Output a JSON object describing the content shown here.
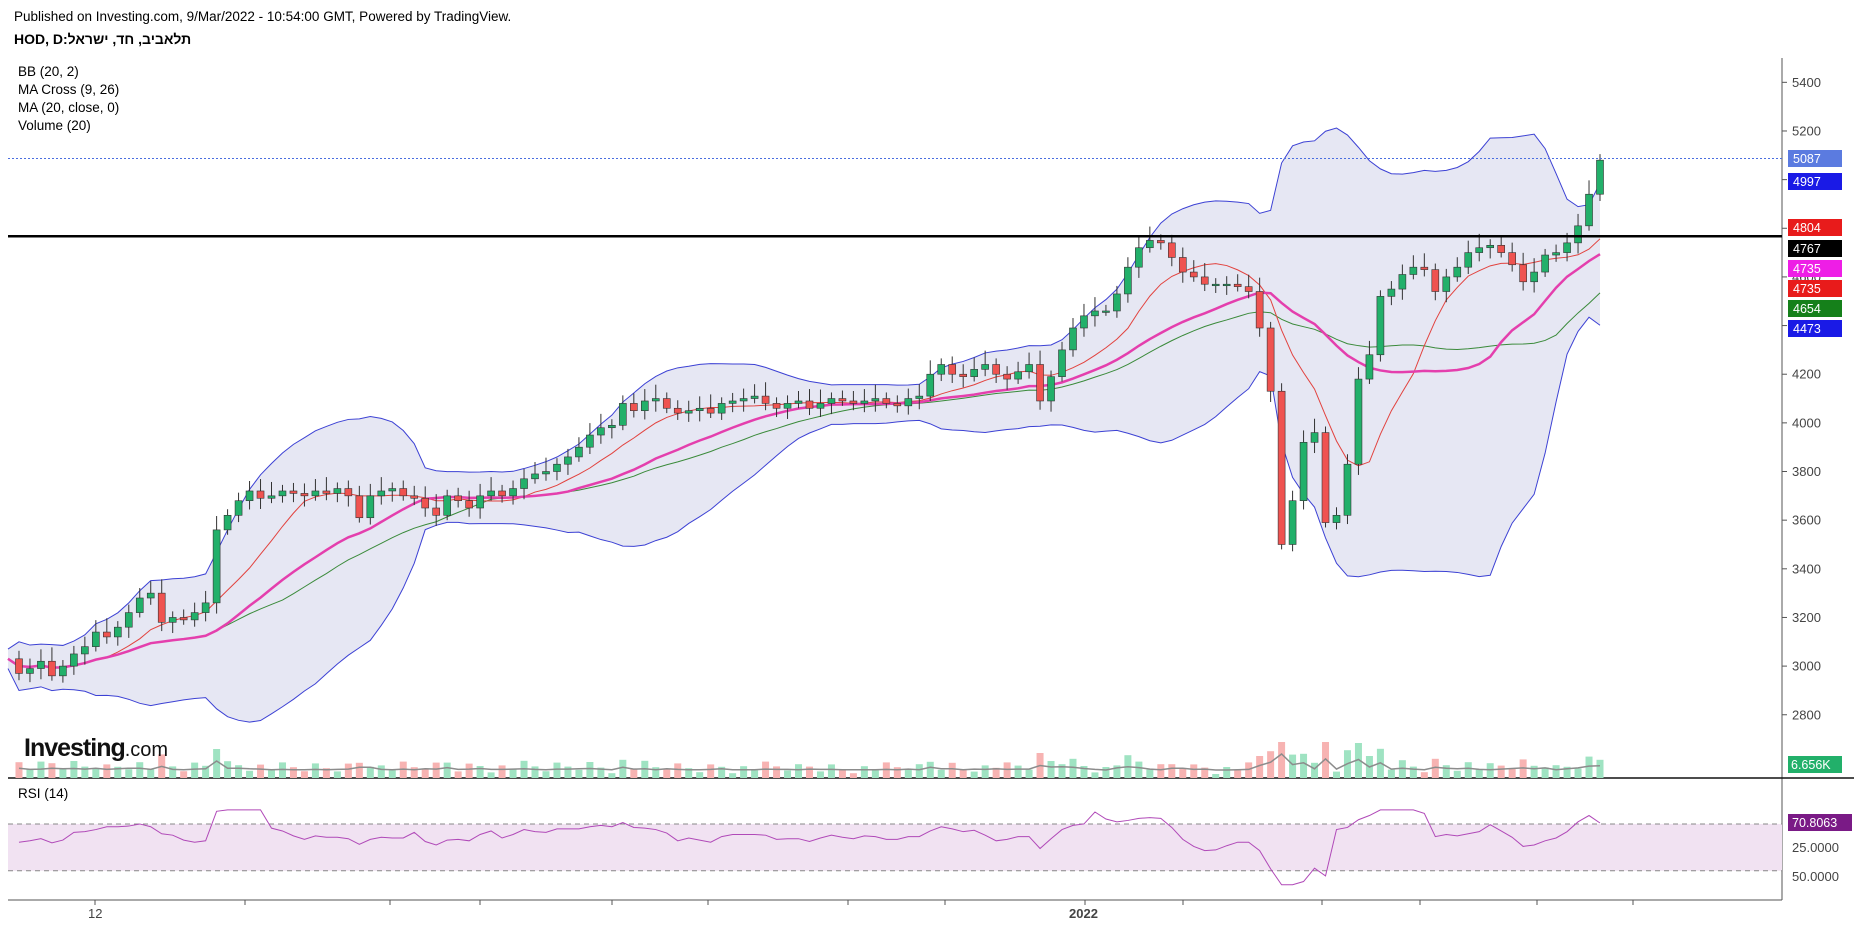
{
  "header": {
    "published": "Published on Investing.com, 9/Mar/2022 - 10:54:00 GMT, Powered by TradingView.",
    "symbol": "תלאביב, חד, ישראל:HOD, D"
  },
  "indicators": [
    "BB (20, 2)",
    "MA Cross (9, 26)",
    "MA (20, close, 0)",
    "Volume (20)"
  ],
  "rsi_label": "RSI (14)",
  "logo": {
    "main": "Investing",
    "suffix": ".com"
  },
  "colors": {
    "up": "#22b06a",
    "down": "#ef5350",
    "bb_fill": "#e6e7f3",
    "bb_line": "#3c41d4",
    "ma_cross_fast": "#e2423e",
    "ma_cross_slow": "#3a8a3a",
    "ma20": "#e43fad",
    "rsi": "#b049b8",
    "rsi_fill": "#f1e2f2",
    "volume_ma": "#8c8c8c"
  },
  "chart_data": {
    "type": "candlestick",
    "interval": "D",
    "x_tick_labels": [
      "12",
      "2022"
    ],
    "y_ticks": [
      2800,
      3000,
      3200,
      3400,
      3600,
      3800,
      4000,
      4200,
      4400,
      4600,
      4800,
      5000,
      5200,
      5400
    ],
    "ylim": [
      2540,
      5500
    ],
    "horizontal_line": 4767,
    "price_line": 5087,
    "price_tags": [
      {
        "label": "5087",
        "value": 5087,
        "color": "#5b7be0"
      },
      {
        "label": "4997",
        "value": 4997,
        "color": "#1a1ae6"
      },
      {
        "label": "4804",
        "value": 4804,
        "color": "#e81b1b"
      },
      {
        "label": "4767",
        "value": 4767,
        "color": "#000000"
      },
      {
        "label": "4735",
        "value": 4735,
        "color": "#ee1ee6"
      },
      {
        "label": "4735",
        "value": 4735,
        "color": "#e81b1b"
      },
      {
        "label": "4654",
        "value": 4654,
        "color": "#15801a"
      },
      {
        "label": "4473",
        "value": 4473,
        "color": "#1a1ae6"
      }
    ],
    "volume_tag": {
      "label": "6.656K",
      "color": "#22b06a"
    },
    "closes": [
      3030,
      2970,
      2990,
      3020,
      2960,
      3000,
      3050,
      3080,
      3140,
      3120,
      3160,
      3220,
      3280,
      3300,
      3180,
      3200,
      3190,
      3220,
      3260,
      3560,
      3620,
      3680,
      3720,
      3690,
      3700,
      3720,
      3710,
      3700,
      3720,
      3710,
      3730,
      3700,
      3610,
      3700,
      3720,
      3730,
      3700,
      3690,
      3650,
      3620,
      3700,
      3680,
      3650,
      3700,
      3720,
      3700,
      3730,
      3770,
      3790,
      3800,
      3830,
      3860,
      3900,
      3950,
      3980,
      3990,
      4080,
      4050,
      4090,
      4100,
      4060,
      4040,
      4050,
      4060,
      4040,
      4080,
      4090,
      4100,
      4110,
      4080,
      4060,
      4080,
      4090,
      4060,
      4080,
      4100,
      4090,
      4080,
      4090,
      4100,
      4080,
      4070,
      4100,
      4110,
      4200,
      4240,
      4200,
      4190,
      4220,
      4240,
      4200,
      4180,
      4210,
      4240,
      4090,
      4190,
      4300,
      4390,
      4440,
      4460,
      4460,
      4530,
      4640,
      4720,
      4750,
      4740,
      4680,
      4620,
      4600,
      4570,
      4570,
      4570,
      4560,
      4540,
      4390,
      4130,
      3500,
      3680,
      3920,
      3960,
      3590,
      3620,
      3830,
      4180,
      4280,
      4520,
      4550,
      4610,
      4640,
      4630,
      4540,
      4600,
      4640,
      4700,
      4720,
      4730,
      4700,
      4650,
      4580,
      4620,
      4690,
      4700,
      4740,
      4810,
      4940,
      5080
    ],
    "volume_scale_note": "volume bars drawn relative to max",
    "rsi": {
      "y_ticks": [
        25,
        50
      ],
      "current": 70.8063,
      "current_label": "70.8063",
      "tick_labels": [
        "50.0000",
        "25.0000"
      ],
      "bands": [
        30,
        70
      ]
    }
  }
}
